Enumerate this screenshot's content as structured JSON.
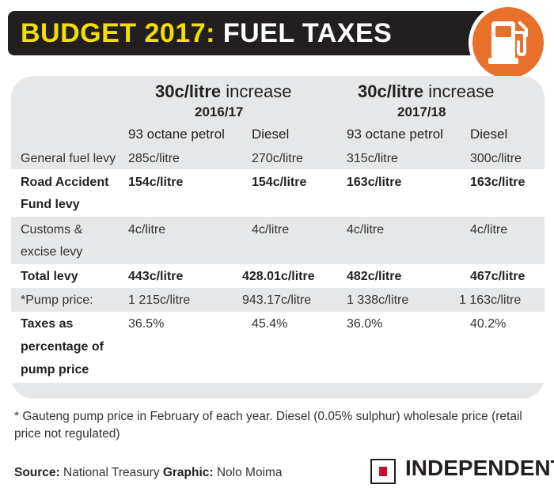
{
  "header": {
    "title_part1": "BUDGET 2017:",
    "title_part2": " FUEL TAXES",
    "icon": "fuel-pump-icon",
    "badge_color": "#e8702a"
  },
  "table": {
    "groups": [
      {
        "increase_bold": "30c/litre",
        "increase_rest": " increase",
        "year": "2016/17"
      },
      {
        "increase_bold": "30c/litre",
        "increase_rest": " increase",
        "year": "2017/18"
      }
    ],
    "columns": [
      "93 octane petrol",
      "Diesel",
      "93 octane petrol",
      "Diesel"
    ],
    "rows": [
      {
        "label": [
          "General fuel levy"
        ],
        "values": [
          "285c/litre",
          "270c/litre",
          "315c/litre",
          "300c/litre"
        ]
      },
      {
        "label": [
          "Road Accident",
          "Fund levy"
        ],
        "values": [
          "154c/litre",
          "154c/litre",
          "163c/litre",
          "163c/litre"
        ]
      },
      {
        "label": [
          "Customs &",
          "excise levy"
        ],
        "values": [
          "4c/litre",
          "4c/litre",
          "4c/litre",
          "4c/litre"
        ]
      },
      {
        "label": [
          "Total levy"
        ],
        "values": [
          "443c/litre",
          "428.01c/litre",
          "482c/litre",
          "467c/litre"
        ]
      },
      {
        "label": [
          "*Pump price:"
        ],
        "values": [
          "1 215c/litre",
          "943.17c/litre",
          "1 338c/litre",
          "1 163c/litre"
        ]
      },
      {
        "label": [
          "Taxes as",
          "percentage of",
          "pump price"
        ],
        "values": [
          "36.5%",
          "45.4%",
          "36.0%",
          "40.2%"
        ]
      }
    ]
  },
  "footnote": "* Gauteng pump price in February of each year. Diesel (0.05% sulphur) wholesale price (retail price not regulated)",
  "source": {
    "source_label": "Source:",
    "source_value": " National Treasury ",
    "graphic_label": "Graphic:",
    "graphic_value": " Nolo Moima"
  },
  "brand": {
    "name": "INDEPENDENT",
    "accent": "#c8102e"
  }
}
